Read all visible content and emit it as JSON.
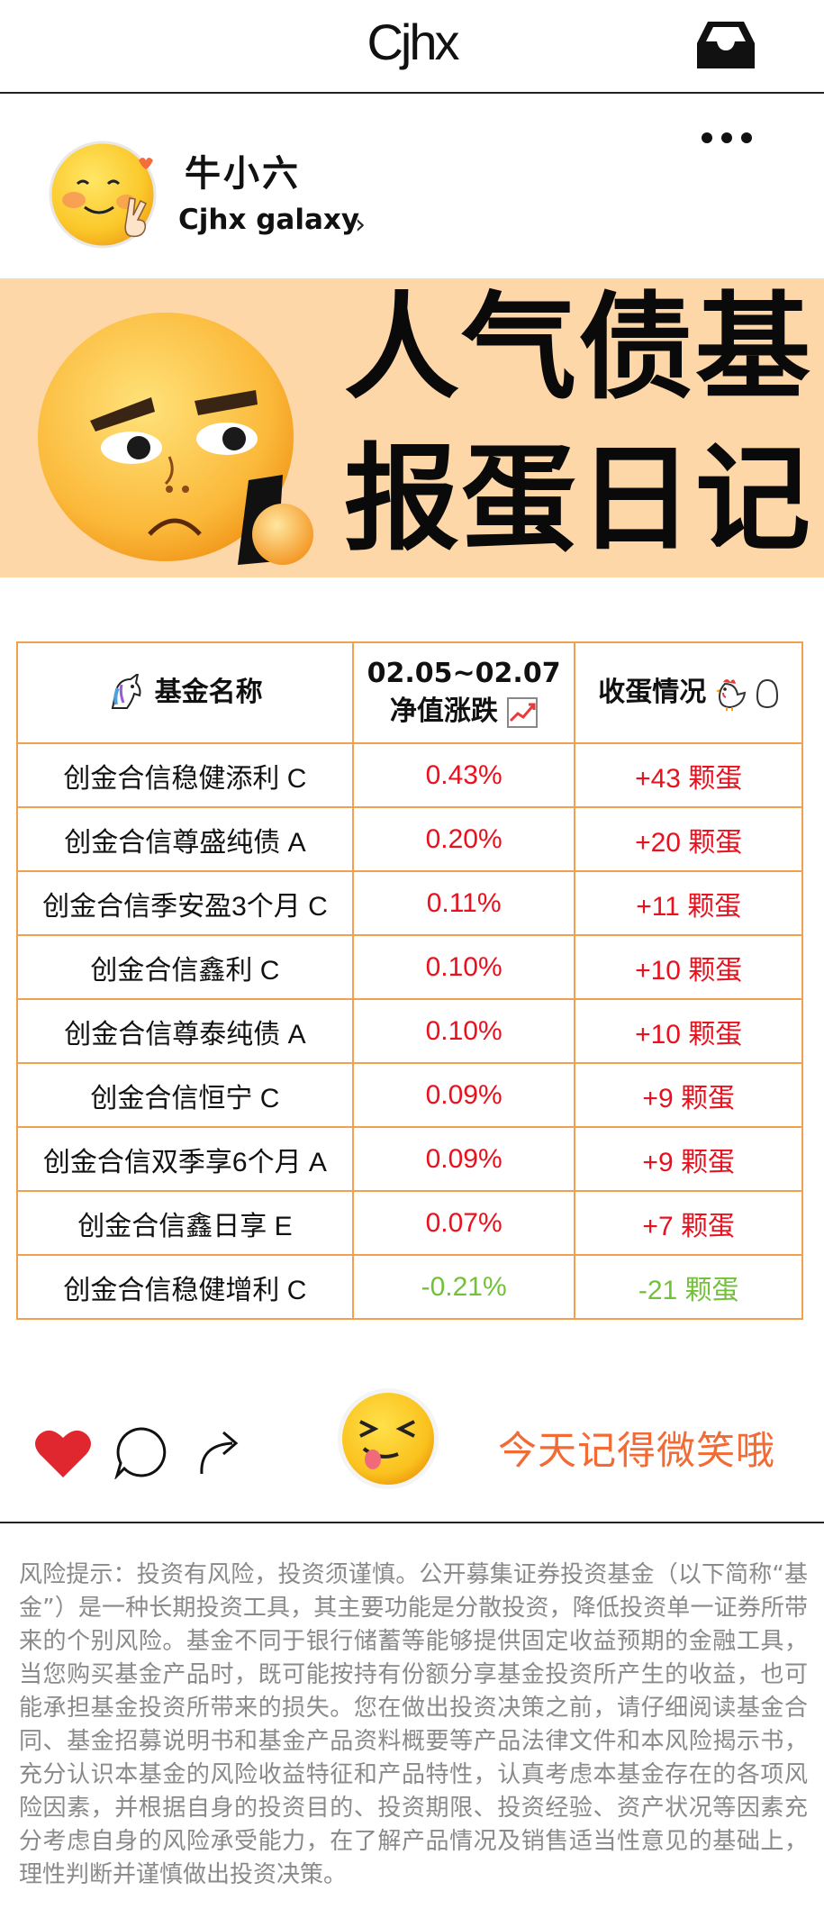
{
  "header": {
    "app_title": "Cjhx",
    "inbox_icon": "inbox-icon"
  },
  "profile": {
    "username": "牛小六",
    "subname": "Cjhx galaxy",
    "chevron": "›",
    "avatar": "smiley-peace-avatar",
    "more_icon": "more-dots-icon"
  },
  "banner": {
    "line1": "人气债基",
    "line2": "报蛋日记",
    "face": "angry-face-emoji"
  },
  "table": {
    "headers": {
      "name": "基金名称",
      "change_line1": "02.05~02.07",
      "change_line2": "净值涨跌",
      "eggs": "收蛋情况"
    },
    "rows": [
      {
        "name": "创金合信稳健添利 C",
        "change": "0.43%",
        "eggs": "+43 颗蛋",
        "trend": "up"
      },
      {
        "name": "创金合信尊盛纯债 A",
        "change": "0.20%",
        "eggs": "+20 颗蛋",
        "trend": "up"
      },
      {
        "name": "创金合信季安盈3个月 C",
        "change": "0.11%",
        "eggs": "+11 颗蛋",
        "trend": "up"
      },
      {
        "name": "创金合信鑫利 C",
        "change": "0.10%",
        "eggs": "+10 颗蛋",
        "trend": "up"
      },
      {
        "name": "创金合信尊泰纯债 A",
        "change": "0.10%",
        "eggs": "+10 颗蛋",
        "trend": "up"
      },
      {
        "name": "创金合信恒宁 C",
        "change": "0.09%",
        "eggs": "+9 颗蛋",
        "trend": "up"
      },
      {
        "name": "创金合信双季享6个月 A",
        "change": "0.09%",
        "eggs": "+9 颗蛋",
        "trend": "up"
      },
      {
        "name": "创金合信鑫日享 E",
        "change": "0.07%",
        "eggs": "+7 颗蛋",
        "trend": "up"
      },
      {
        "name": "创金合信稳健增利 C",
        "change": "-0.21%",
        "eggs": "-21 颗蛋",
        "trend": "down"
      }
    ]
  },
  "actions": {
    "smile_text": "今天记得微笑哦",
    "like_color": "#e0272f"
  },
  "risk_notice": "风险提示：投资有风险，投资须谨慎。公开募集证券投资基金（以下简称“基金”）是一种长期投资工具，其主要功能是分散投资，降低投资单一证券所带来的个别风险。基金不同于银行储蓄等能够提供固定收益预期的金融工具，当您购买基金产品时，既可能按持有份额分享基金投资所产生的收益，也可能承担基金投资所带来的损失。您在做出投资决策之前，请仔细阅读基金合同、基金招募说明书和基金产品资料概要等产品法律文件和本风险揭示书，充分认识本基金的风险收益特征和产品特性，认真考虑本基金存在的各项风险因素，并根据自身的投资目的、投资期限、投资经验、资产状况等因素充分考虑自身的风险承受能力，在了解产品情况及销售适当性意见的基础上，理性判断并谨慎做出投资决策。"
}
